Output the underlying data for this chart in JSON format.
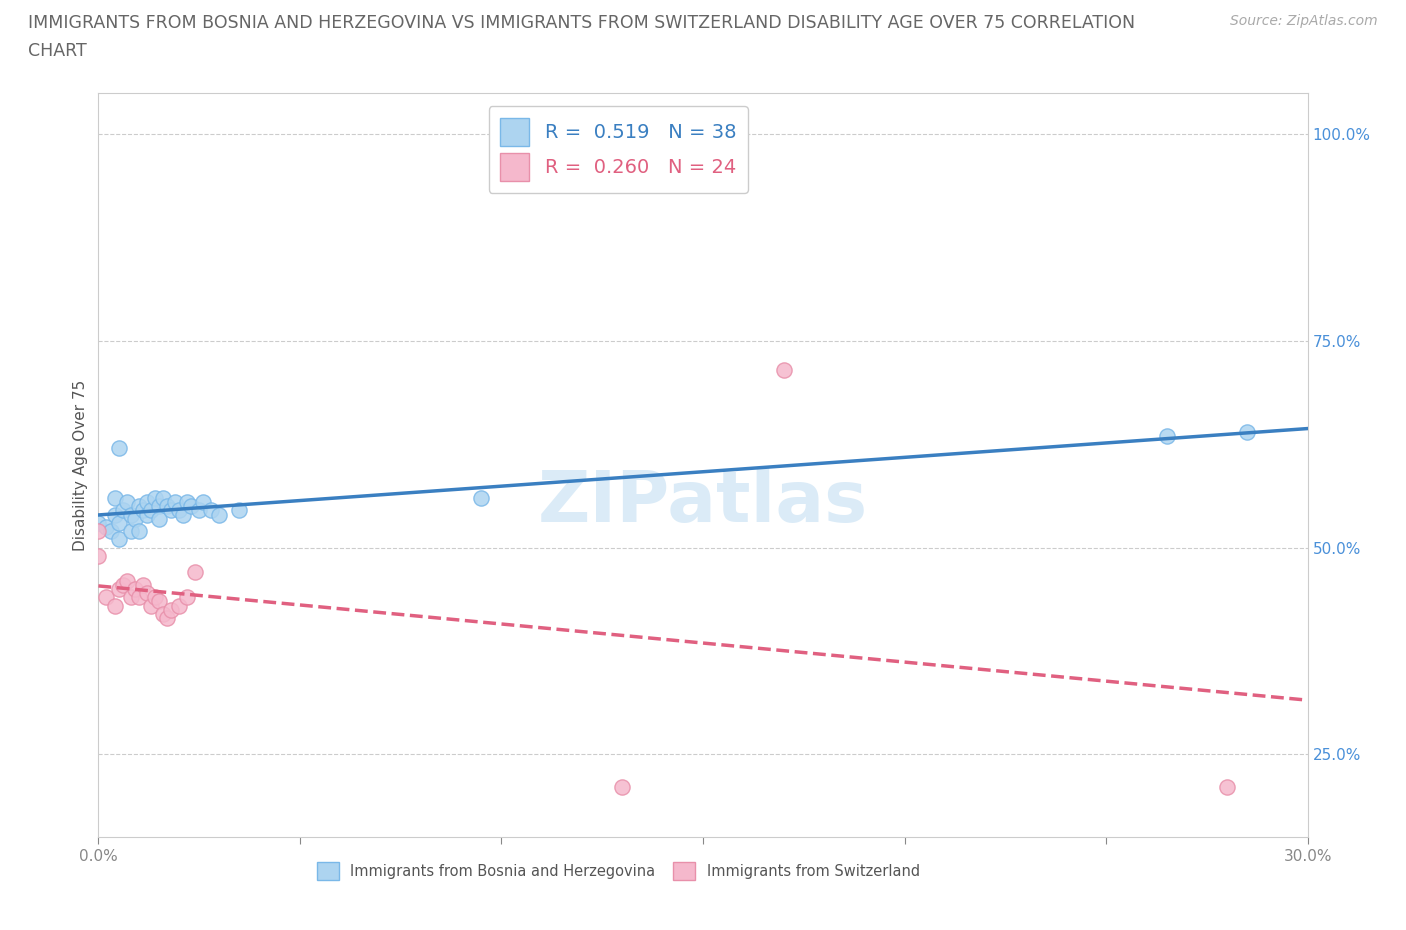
{
  "title_line1": "IMMIGRANTS FROM BOSNIA AND HERZEGOVINA VS IMMIGRANTS FROM SWITZERLAND DISABILITY AGE OVER 75 CORRELATION",
  "title_line2": "CHART",
  "source": "Source: ZipAtlas.com",
  "ylabel": "Disability Age Over 75",
  "xlim": [
    0.0,
    0.3
  ],
  "ylim": [
    0.15,
    1.05
  ],
  "x_ticks": [
    0.0,
    0.05,
    0.1,
    0.15,
    0.2,
    0.25,
    0.3
  ],
  "x_tick_labels": [
    "0.0%",
    "",
    "",
    "",
    "",
    "",
    "30.0%"
  ],
  "y_ticks": [
    0.25,
    0.5,
    0.75,
    1.0
  ],
  "y_tick_labels": [
    "25.0%",
    "50.0%",
    "75.0%",
    "100.0%"
  ],
  "bosnia_color": "#add4f0",
  "bosnia_edge_color": "#7ab8e8",
  "switzerland_color": "#f5b8cc",
  "switzerland_edge_color": "#e890aa",
  "trend_bosnia_color": "#3a7fc1",
  "trend_switzerland_color": "#e06080",
  "R_bosnia": 0.519,
  "N_bosnia": 38,
  "R_switzerland": 0.26,
  "N_switzerland": 24,
  "background_color": "#ffffff",
  "grid_color": "#cccccc",
  "watermark": "ZIPatlas",
  "bosnia_points": [
    [
      0.0,
      0.53
    ],
    [
      0.002,
      0.525
    ],
    [
      0.003,
      0.52
    ],
    [
      0.004,
      0.54
    ],
    [
      0.004,
      0.56
    ],
    [
      0.005,
      0.51
    ],
    [
      0.005,
      0.53
    ],
    [
      0.006,
      0.545
    ],
    [
      0.007,
      0.555
    ],
    [
      0.008,
      0.54
    ],
    [
      0.008,
      0.52
    ],
    [
      0.009,
      0.535
    ],
    [
      0.01,
      0.55
    ],
    [
      0.01,
      0.52
    ],
    [
      0.011,
      0.545
    ],
    [
      0.012,
      0.54
    ],
    [
      0.012,
      0.555
    ],
    [
      0.013,
      0.545
    ],
    [
      0.014,
      0.56
    ],
    [
      0.015,
      0.55
    ],
    [
      0.015,
      0.535
    ],
    [
      0.016,
      0.56
    ],
    [
      0.017,
      0.55
    ],
    [
      0.018,
      0.545
    ],
    [
      0.019,
      0.555
    ],
    [
      0.02,
      0.545
    ],
    [
      0.021,
      0.54
    ],
    [
      0.022,
      0.555
    ],
    [
      0.023,
      0.55
    ],
    [
      0.025,
      0.545
    ],
    [
      0.026,
      0.555
    ],
    [
      0.028,
      0.545
    ],
    [
      0.03,
      0.54
    ],
    [
      0.035,
      0.545
    ],
    [
      0.005,
      0.62
    ],
    [
      0.095,
      0.56
    ],
    [
      0.265,
      0.635
    ],
    [
      0.285,
      0.64
    ]
  ],
  "switzerland_points": [
    [
      0.0,
      0.52
    ],
    [
      0.0,
      0.49
    ],
    [
      0.002,
      0.44
    ],
    [
      0.004,
      0.43
    ],
    [
      0.005,
      0.45
    ],
    [
      0.006,
      0.455
    ],
    [
      0.007,
      0.46
    ],
    [
      0.008,
      0.44
    ],
    [
      0.009,
      0.45
    ],
    [
      0.01,
      0.44
    ],
    [
      0.011,
      0.455
    ],
    [
      0.012,
      0.445
    ],
    [
      0.013,
      0.43
    ],
    [
      0.014,
      0.44
    ],
    [
      0.015,
      0.435
    ],
    [
      0.016,
      0.42
    ],
    [
      0.017,
      0.415
    ],
    [
      0.018,
      0.425
    ],
    [
      0.02,
      0.43
    ],
    [
      0.022,
      0.44
    ],
    [
      0.024,
      0.47
    ],
    [
      0.13,
      0.21
    ],
    [
      0.17,
      0.715
    ],
    [
      0.28,
      0.21
    ]
  ],
  "title_fontsize": 12.5,
  "axis_label_fontsize": 11,
  "tick_fontsize": 11,
  "legend_fontsize": 14,
  "source_fontsize": 10
}
